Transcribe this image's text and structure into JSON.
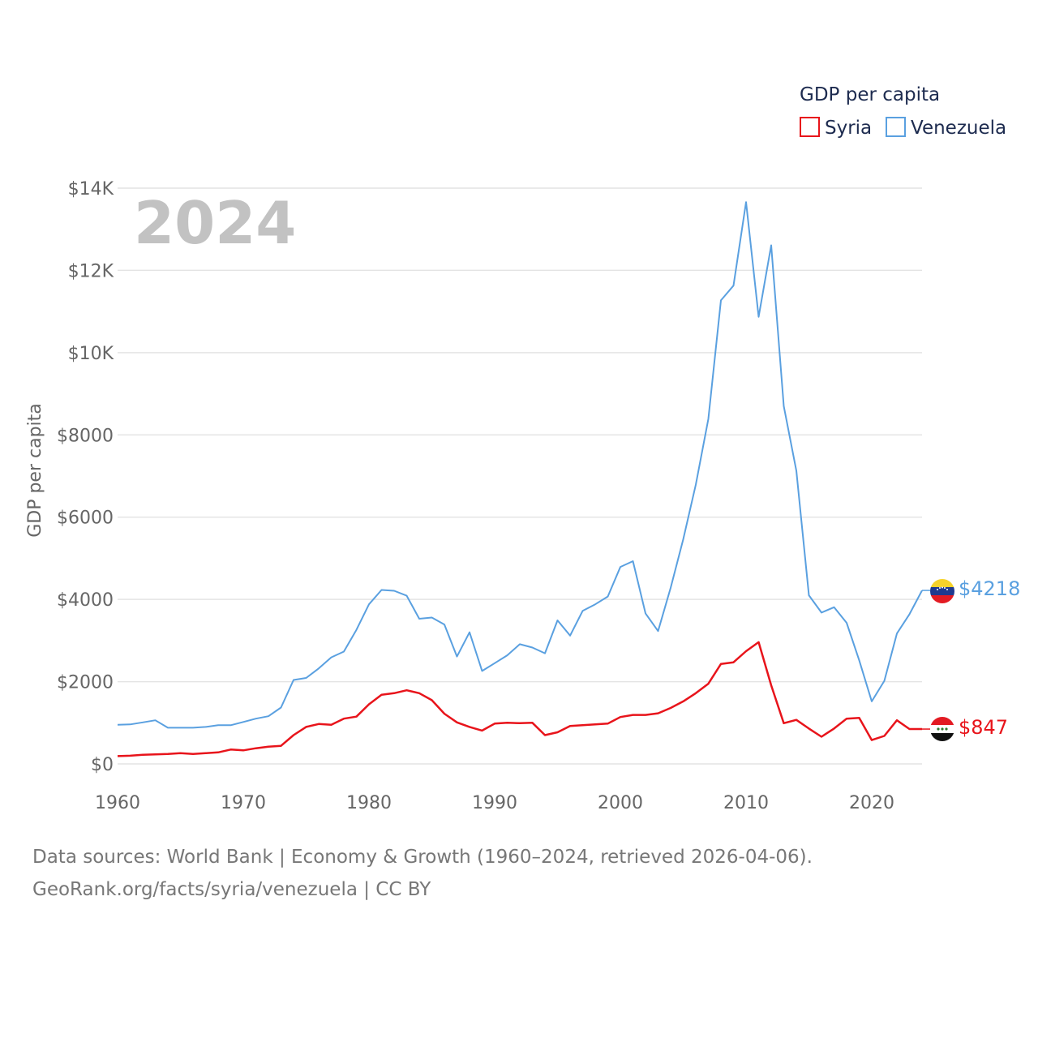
{
  "chart_data": {
    "type": "line",
    "title": "",
    "year_label": "2024",
    "xlabel": "",
    "ylabel": "GDP per capita",
    "xlim": [
      1960,
      2024
    ],
    "ylim": [
      0,
      14000
    ],
    "x_ticks": [
      1960,
      1970,
      1980,
      1990,
      2000,
      2010,
      2020
    ],
    "y_ticks": [
      0,
      2000,
      4000,
      6000,
      8000,
      10000,
      12000,
      14000
    ],
    "y_tick_labels": [
      "$0",
      "$2000",
      "$4000",
      "$6000",
      "$8000",
      "$10K",
      "$12K",
      "$14K"
    ],
    "x_tick_labels": [
      "1960",
      "1970",
      "1980",
      "1990",
      "2000",
      "2010",
      "2020"
    ],
    "grid": true,
    "legend": {
      "title": "GDP per capita",
      "placement": "top-right"
    },
    "x": [
      1960,
      1961,
      1962,
      1963,
      1964,
      1965,
      1966,
      1967,
      1968,
      1969,
      1970,
      1971,
      1972,
      1973,
      1974,
      1975,
      1976,
      1977,
      1978,
      1979,
      1980,
      1981,
      1982,
      1983,
      1984,
      1985,
      1986,
      1987,
      1988,
      1989,
      1990,
      1991,
      1992,
      1993,
      1994,
      1995,
      1996,
      1997,
      1998,
      1999,
      2000,
      2001,
      2002,
      2003,
      2004,
      2005,
      2006,
      2007,
      2008,
      2009,
      2010,
      2011,
      2012,
      2013,
      2014,
      2015,
      2016,
      2017,
      2018,
      2019,
      2020,
      2021,
      2022,
      2023,
      2024
    ],
    "series": [
      {
        "name": "Syria",
        "color": "#e8141b",
        "end_label": "$847",
        "values": [
          190,
          200,
          220,
          230,
          240,
          260,
          240,
          260,
          280,
          350,
          330,
          380,
          420,
          440,
          700,
          900,
          970,
          950,
          1100,
          1150,
          1450,
          1680,
          1720,
          1790,
          1720,
          1550,
          1220,
          1010,
          900,
          810,
          980,
          1000,
          990,
          1000,
          700,
          770,
          920,
          940,
          960,
          980,
          1140,
          1190,
          1190,
          1230,
          1360,
          1520,
          1720,
          1950,
          2430,
          2470,
          2740,
          2960,
          1910,
          990,
          1070,
          860,
          660,
          860,
          1100,
          1120,
          580,
          680,
          1060,
          847,
          847
        ]
      },
      {
        "name": "Venezuela",
        "color": "#5aa0e0",
        "end_label": "$4218",
        "values": [
          950,
          960,
          1010,
          1060,
          880,
          880,
          880,
          900,
          940,
          940,
          1020,
          1100,
          1160,
          1370,
          2040,
          2090,
          2320,
          2590,
          2730,
          3260,
          3880,
          4230,
          4210,
          4090,
          3530,
          3560,
          3390,
          2610,
          3200,
          2260,
          2450,
          2640,
          2910,
          2830,
          2690,
          3490,
          3120,
          3720,
          3880,
          4070,
          4790,
          4930,
          3660,
          3230,
          4280,
          5460,
          6790,
          8390,
          11270,
          11630,
          13660,
          10870,
          12610,
          8700,
          7130,
          4100,
          3680,
          3810,
          3430,
          2520,
          1520,
          2020,
          3170,
          3640,
          4218
        ]
      }
    ]
  },
  "footer": {
    "line1": "Data sources: World Bank | Economy & Growth (1960–2024, retrieved 2026-04-06).",
    "line2": "GeoRank.org/facts/syria/venezuela | CC BY"
  },
  "colors": {
    "grid": "#e4e4e4",
    "axis_text": "#666666",
    "legend_text": "#1d2b4f",
    "year_watermark": "#c2c2c2"
  },
  "icons": {
    "venezuela_marker": "venezuela-flag-icon",
    "syria_marker": "syria-flag-icon"
  }
}
